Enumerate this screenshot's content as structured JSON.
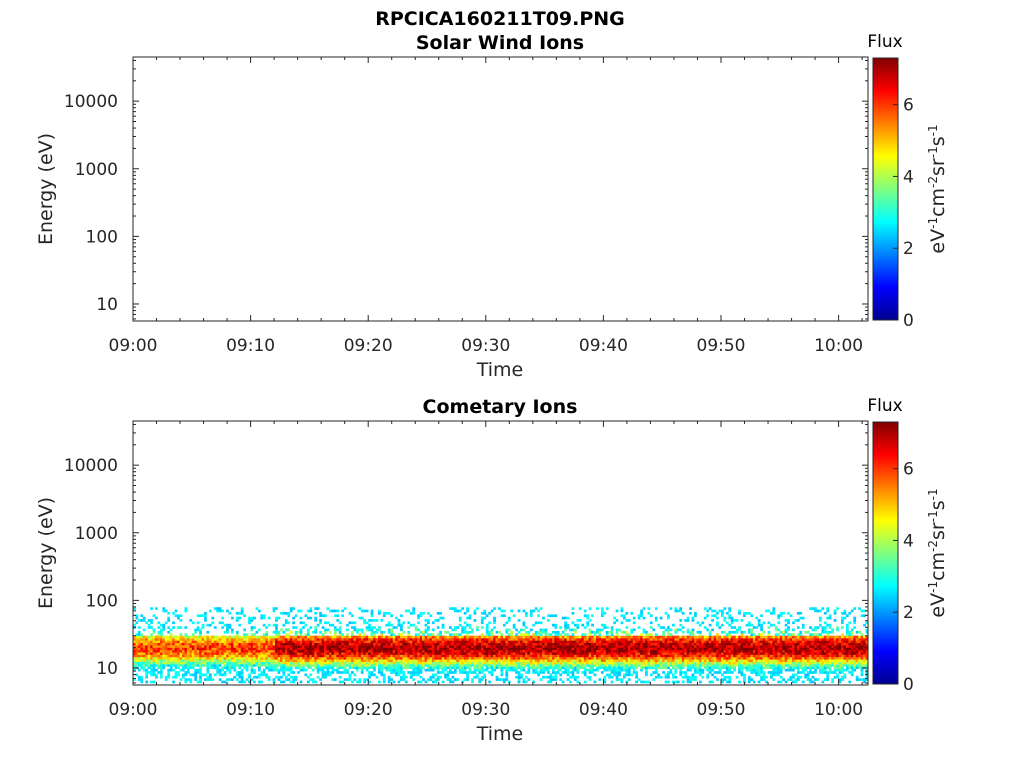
{
  "chart_data": [
    {
      "type": "heatmap",
      "suptitle": "RPCICA160211T09.PNG",
      "title": "Solar Wind Ions",
      "xlabel": "Time",
      "ylabel": "Energy (eV)",
      "x_ticks": [
        "09:00",
        "09:10",
        "09:20",
        "09:30",
        "09:40",
        "09:50",
        "10:00"
      ],
      "y_scale": "log",
      "y_ticks": [
        "10",
        "100",
        "1000",
        "10000"
      ],
      "colorbar": {
        "title": "Flux",
        "label": "eV-1cm-2sr-1s-1",
        "ticks": [
          "0",
          "2",
          "4",
          "6"
        ],
        "range": [
          0,
          7.3
        ],
        "colormap": "jet"
      },
      "data": "empty"
    },
    {
      "type": "heatmap",
      "title": "Cometary Ions",
      "xlabel": "Time",
      "ylabel": "Energy (eV)",
      "x_ticks": [
        "09:00",
        "09:10",
        "09:20",
        "09:30",
        "09:40",
        "09:50",
        "10:00"
      ],
      "y_scale": "log",
      "y_ticks": [
        "10",
        "100",
        "1000",
        "10000"
      ],
      "colorbar": {
        "title": "Flux",
        "label": "eV-1cm-2sr-1s-1",
        "ticks": [
          "0",
          "2",
          "4",
          "6"
        ],
        "range": [
          0,
          7.3
        ],
        "colormap": "jet"
      },
      "data_summary": {
        "energy_range_eV": [
          6,
          80
        ],
        "peak_energy_eV": [
          13,
          28
        ],
        "peak_flux": 7,
        "time_range": [
          "09:00",
          "10:02"
        ]
      }
    }
  ]
}
